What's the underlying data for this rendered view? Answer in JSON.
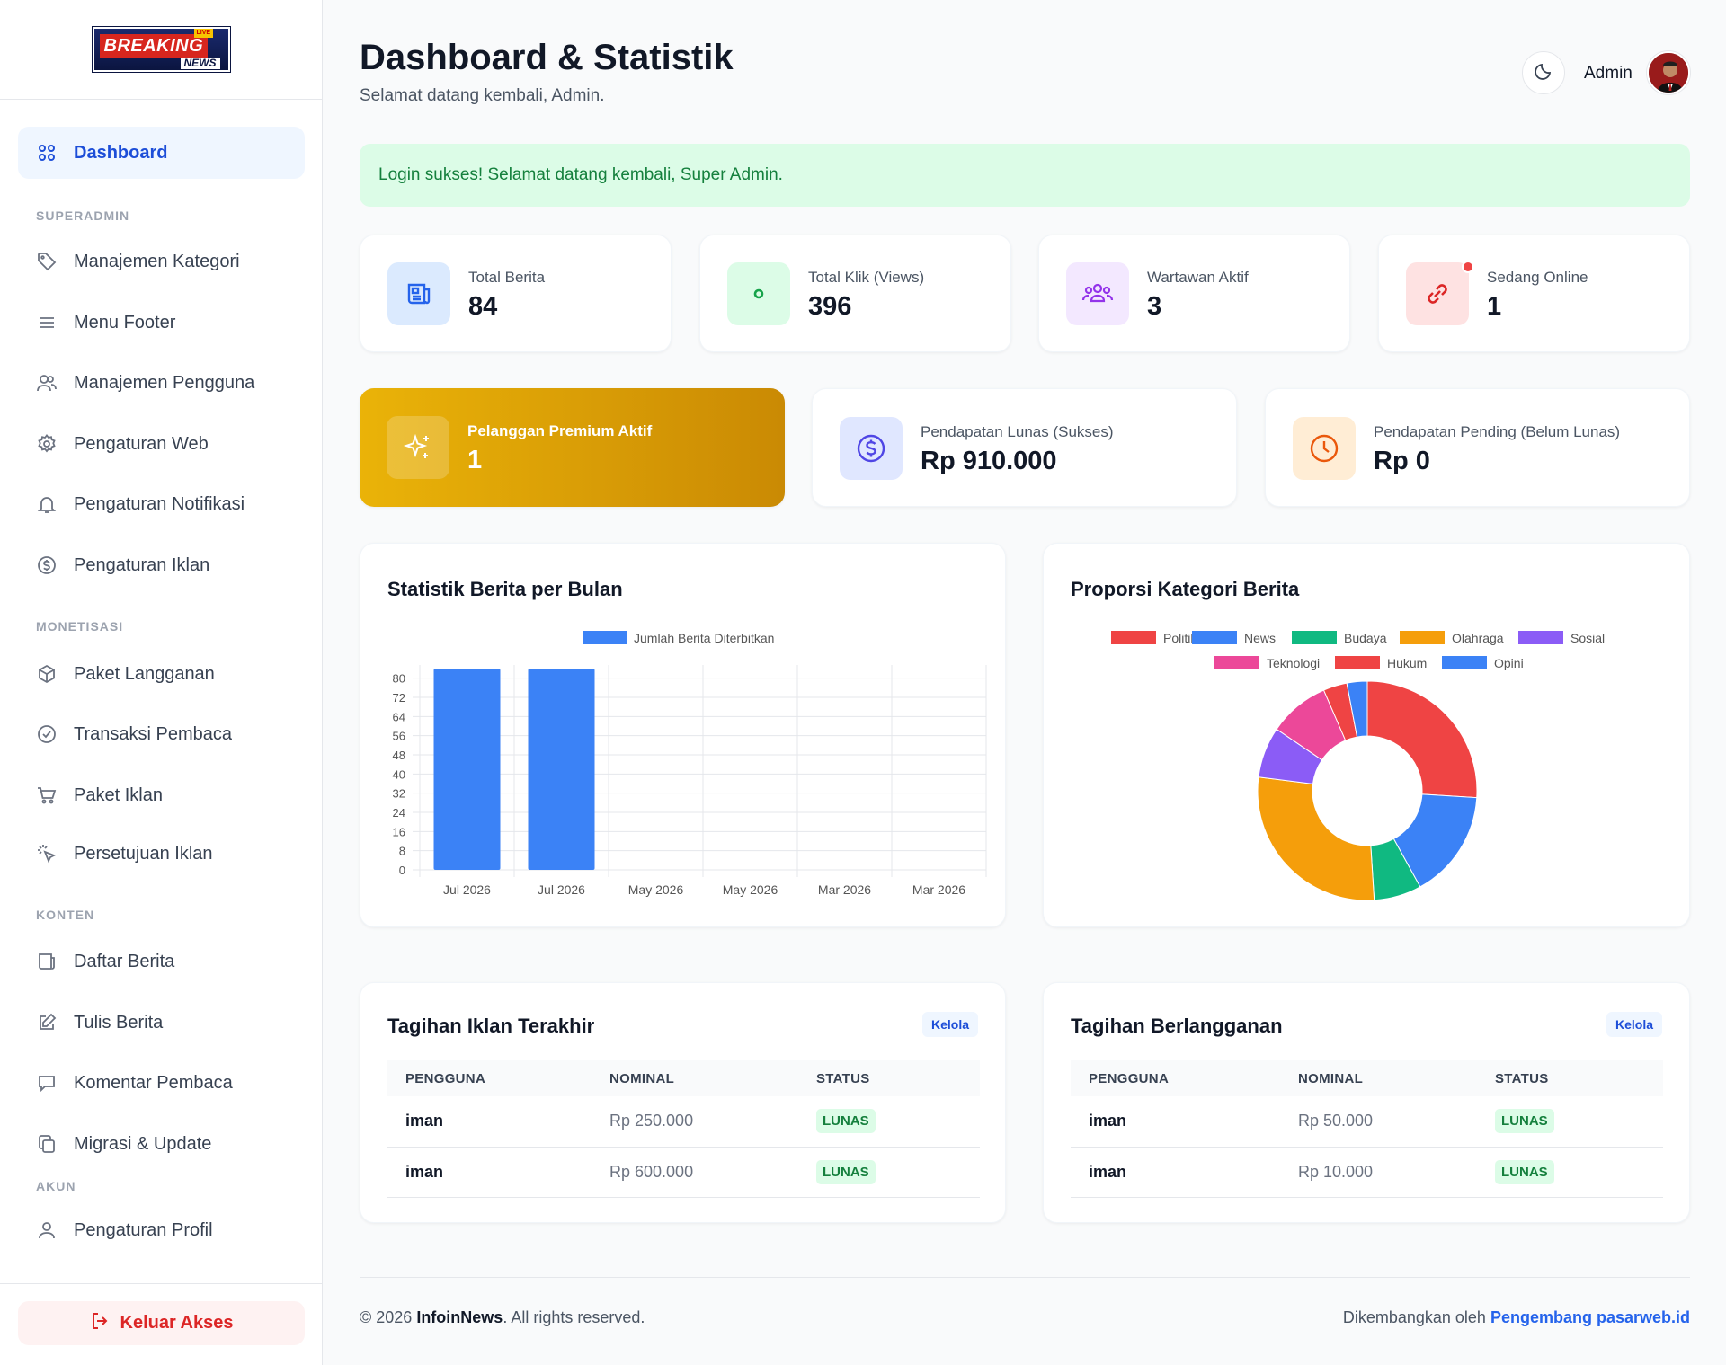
{
  "logo": {
    "main": "BREAKING",
    "badge": "LIVE",
    "sub": "NEWS"
  },
  "sidebar": {
    "active": "Dashboard",
    "sections": {
      "superadmin": "SUPERADMIN",
      "monetisasi": "MONETISASI",
      "konten": "KONTEN",
      "akun": "AKUN"
    },
    "items": {
      "dashboard": "Dashboard",
      "kategori": "Manajemen Kategori",
      "footer": "Menu Footer",
      "pengguna": "Manajemen Pengguna",
      "web": "Pengaturan Web",
      "notifikasi": "Pengaturan Notifikasi",
      "iklan": "Pengaturan Iklan",
      "paket_langganan": "Paket Langganan",
      "transaksi": "Transaksi Pembaca",
      "paket_iklan": "Paket Iklan",
      "persetujuan": "Persetujuan Iklan",
      "daftar_berita": "Daftar Berita",
      "tulis_berita": "Tulis Berita",
      "komentar": "Komentar Pembaca",
      "migrasi": "Migrasi & Update",
      "profil": "Pengaturan Profil"
    },
    "logout": "Keluar Akses"
  },
  "header": {
    "title": "Dashboard & Statistik",
    "subtitle": "Selamat datang kembali, Admin.",
    "user": "Admin"
  },
  "alert": "Login sukses! Selamat datang kembali, Super Admin.",
  "stats": {
    "berita": {
      "label": "Total Berita",
      "value": "84"
    },
    "klik": {
      "label": "Total Klik (Views)",
      "value": "396"
    },
    "wartawan": {
      "label": "Wartawan Aktif",
      "value": "3"
    },
    "online": {
      "label": "Sedang Online",
      "value": "1"
    },
    "premium": {
      "label": "Pelanggan Premium Aktif",
      "value": "1"
    },
    "lunas": {
      "label": "Pendapatan Lunas (Sukses)",
      "value": "Rp 910.000"
    },
    "pending": {
      "label": "Pendapatan Pending (Belum Lunas)",
      "value": "Rp 0"
    }
  },
  "colors": {
    "primary": "#2563eb",
    "premium": "#eab308",
    "success": "#15803d"
  },
  "bar_chart_title": "Statistik Berita per Bulan",
  "pie_chart_title": "Proporsi Kategori Berita",
  "chart_data": [
    {
      "type": "bar",
      "categories": [
        "Jul 2026",
        "Jul 2026",
        "May 2026",
        "May 2026",
        "Mar 2026",
        "Mar 2026"
      ],
      "series": [
        {
          "name": "Jumlah Berita Diterbitkan",
          "values": [
            84,
            84,
            0,
            0,
            0,
            0
          ],
          "color": "#3b82f6"
        }
      ],
      "yticks": [
        0,
        8,
        16,
        24,
        32,
        40,
        48,
        56,
        64,
        72,
        80
      ],
      "ylim": [
        0,
        84
      ],
      "legend": "top",
      "grid": true
    },
    {
      "type": "pie",
      "donut": true,
      "labels": [
        "Politik",
        "News",
        "Budaya",
        "Olahraga",
        "Sosial",
        "Teknologi",
        "Hukum",
        "Opini"
      ],
      "colors": [
        "#ef4444",
        "#3b82f6",
        "#10b981",
        "#f59e0b",
        "#8b5cf6",
        "#ec4899",
        "#ef4444",
        "#3b82f6"
      ],
      "legend": "top",
      "slices": [
        {
          "color": "#ef4444",
          "value": 26
        },
        {
          "color": "#3b82f6",
          "value": 16
        },
        {
          "color": "#10b981",
          "value": 7
        },
        {
          "color": "#f59e0b",
          "value": 28
        },
        {
          "color": "#8b5cf6",
          "value": 7.5
        },
        {
          "color": "#ec4899",
          "value": 9
        },
        {
          "color": "#ef4444",
          "value": 3.5
        },
        {
          "color": "#3b82f6",
          "value": 3
        }
      ]
    }
  ],
  "iklan": {
    "title": "Tagihan Iklan Terakhir",
    "action": "Kelola",
    "columns": [
      "PENGGUNA",
      "NOMINAL",
      "STATUS"
    ],
    "rows": [
      [
        "iman",
        "Rp 250.000",
        "LUNAS"
      ],
      [
        "iman",
        "Rp 600.000",
        "LUNAS"
      ]
    ]
  },
  "langganan": {
    "title": "Tagihan Berlangganan",
    "action": "Kelola",
    "columns": [
      "PENGGUNA",
      "NOMINAL",
      "STATUS"
    ],
    "rows": [
      [
        "iman",
        "Rp 50.000",
        "LUNAS"
      ],
      [
        "iman",
        "Rp 10.000",
        "LUNAS"
      ]
    ]
  },
  "footer": {
    "copy_prefix": "© 2026 ",
    "brand": "InfoinNews",
    "copy_suffix": ". All rights reserved.",
    "dev_prefix": "Dikembangkan oleh ",
    "dev_link": "Pengembang pasarweb.id"
  }
}
